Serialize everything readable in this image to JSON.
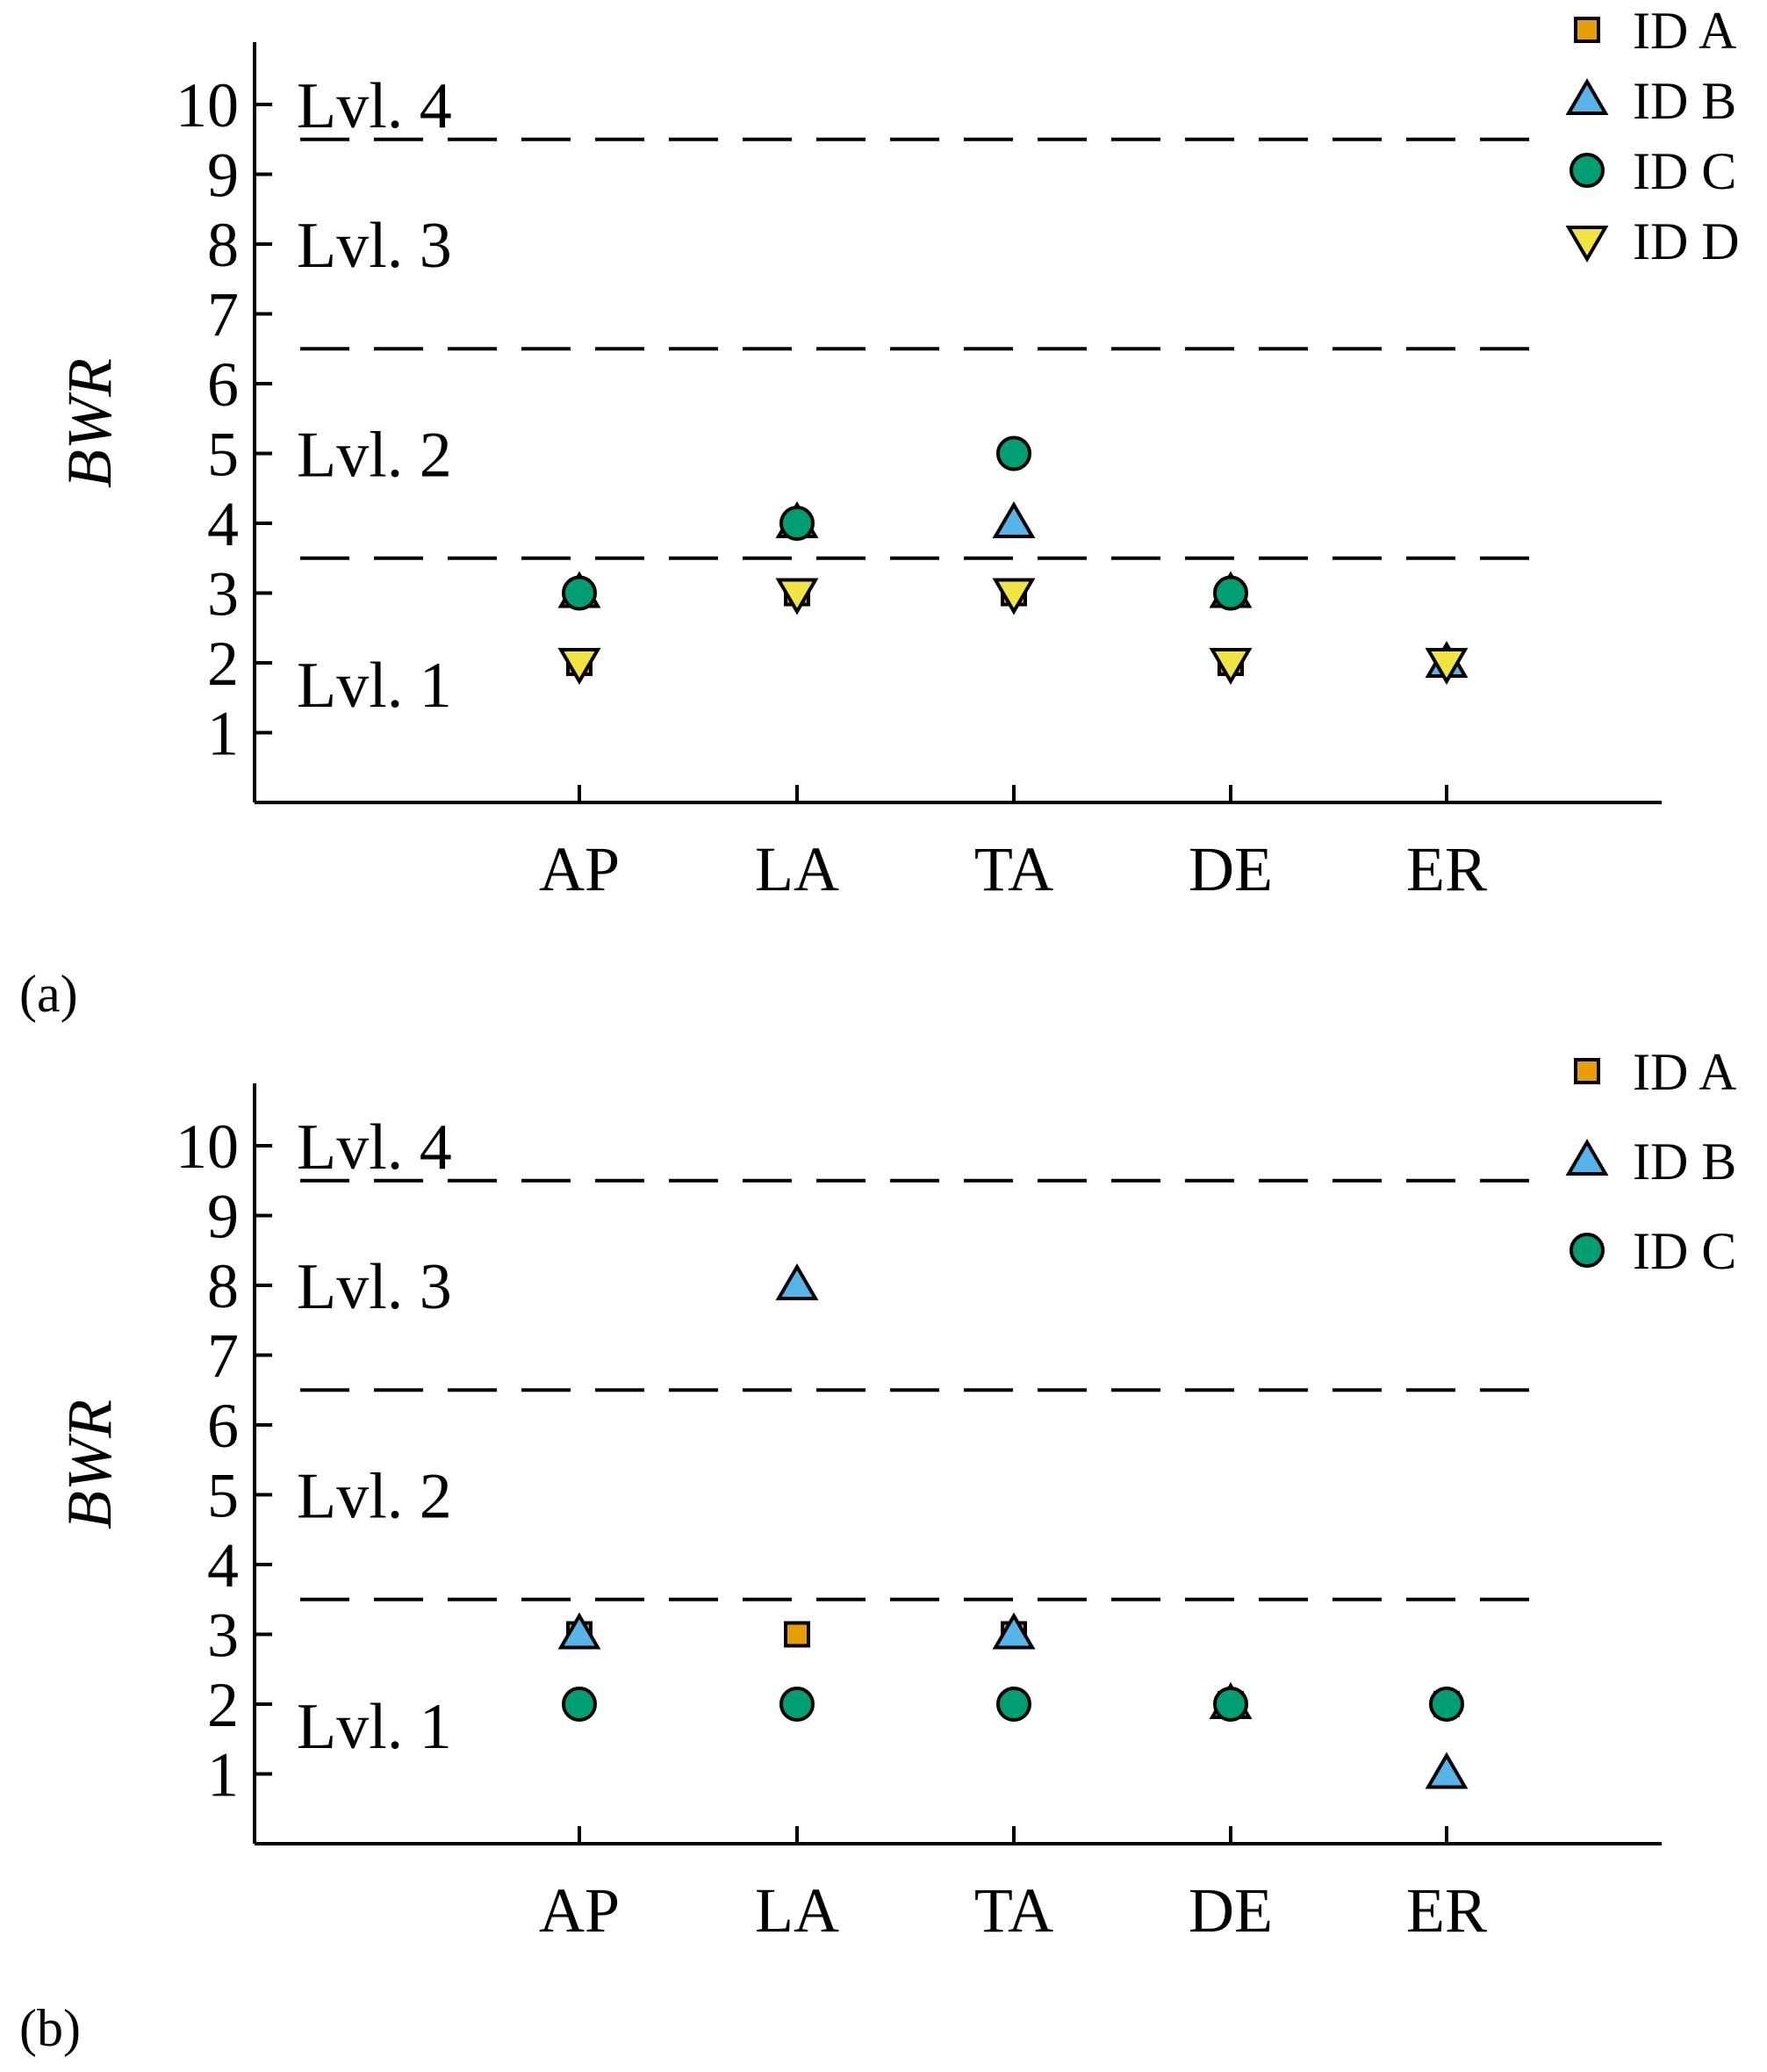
{
  "colors": {
    "ID A": "#e69f00",
    "ID B": "#56b4e9",
    "ID C": "#009e73",
    "ID D": "#f0e442"
  },
  "chart_data": [
    {
      "panel": "(a)",
      "type": "scatter",
      "ylabel": "BWR",
      "xlabel": "",
      "categories": [
        "AP",
        "LA",
        "TA",
        "DE",
        "ER"
      ],
      "ylim": [
        0,
        11
      ],
      "yticks": [
        "1",
        "2",
        "3",
        "4",
        "5",
        "6",
        "7",
        "8",
        "9",
        "10"
      ],
      "thresholds": [
        3.5,
        6.5,
        9.5
      ],
      "levels": [
        {
          "label": "Lvl. 1",
          "y": 1.7
        },
        {
          "label": "Lvl. 2",
          "y": 5.0
        },
        {
          "label": "Lvl. 3",
          "y": 8.0
        },
        {
          "label": "Lvl. 4",
          "y": 10.0
        }
      ],
      "legend": [
        "ID A",
        "ID B",
        "ID C",
        "ID D"
      ],
      "series": [
        {
          "name": "ID A",
          "marker": "square",
          "values": [
            2,
            3,
            3,
            2,
            2
          ]
        },
        {
          "name": "ID B",
          "marker": "triangle-up",
          "values": [
            3,
            4,
            4,
            3,
            2
          ]
        },
        {
          "name": "ID C",
          "marker": "circle",
          "values": [
            3,
            4,
            5,
            3,
            null
          ]
        },
        {
          "name": "ID D",
          "marker": "triangle-down",
          "values": [
            2,
            3,
            3,
            2,
            2
          ]
        }
      ]
    },
    {
      "panel": "(b)",
      "type": "scatter",
      "ylabel": "BWR",
      "xlabel": "",
      "categories": [
        "AP",
        "LA",
        "TA",
        "DE",
        "ER"
      ],
      "ylim": [
        0,
        11
      ],
      "yticks": [
        "1",
        "2",
        "3",
        "4",
        "5",
        "6",
        "7",
        "8",
        "9",
        "10"
      ],
      "thresholds": [
        3.5,
        6.5,
        9.5
      ],
      "levels": [
        {
          "label": "Lvl. 1",
          "y": 1.7
        },
        {
          "label": "Lvl. 2",
          "y": 5.0
        },
        {
          "label": "Lvl. 3",
          "y": 8.0
        },
        {
          "label": "Lvl. 4",
          "y": 10.0
        }
      ],
      "legend": [
        "ID A",
        "ID B",
        "ID C"
      ],
      "series": [
        {
          "name": "ID A",
          "marker": "square",
          "values": [
            3,
            3,
            3,
            2,
            2
          ]
        },
        {
          "name": "ID B",
          "marker": "triangle-up",
          "values": [
            3,
            8,
            3,
            2,
            1
          ]
        },
        {
          "name": "ID C",
          "marker": "circle",
          "values": [
            2,
            2,
            2,
            2,
            2
          ]
        }
      ]
    }
  ]
}
